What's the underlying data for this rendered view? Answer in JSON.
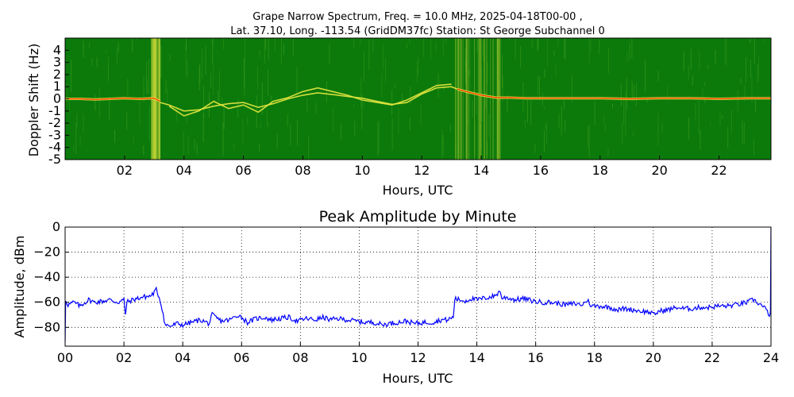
{
  "header": {
    "title_line1": "Grape Narrow Spectrum, Freq. = 10.0 MHz, 2025-04-18T00-00 ,",
    "title_line2": "Lat.  37.10, Long. -113.54 (GridDM37fc) Station: St George Subchannel 0"
  },
  "chart_data": [
    {
      "type": "heatmap",
      "title": "Grape Narrow Spectrum, Freq. = 10.0 MHz, 2025-04-18T00-00 , Lat.  37.10, Long. -113.54 (GridDM37fc) Station: St George Subchannel 0",
      "xlabel": "Hours, UTC",
      "ylabel": "Doppler Shift (Hz)",
      "xlim": [
        0,
        23.75
      ],
      "ylim": [
        -5,
        5
      ],
      "x_ticks": [
        "02",
        "04",
        "06",
        "08",
        "10",
        "12",
        "14",
        "16",
        "18",
        "20",
        "22"
      ],
      "x_tick_values": [
        2,
        4,
        6,
        8,
        10,
        12,
        14,
        16,
        18,
        20,
        22
      ],
      "y_ticks": [
        "4",
        "3",
        "2",
        "1",
        "0",
        "-1",
        "-2",
        "-3",
        "-4",
        "-5"
      ],
      "y_tick_values": [
        4,
        3,
        2,
        1,
        0,
        -1,
        -2,
        -3,
        -4,
        -5
      ],
      "colors": {
        "background": "#0b7a0b",
        "noise": "#3c9a1a",
        "signal": "#e8e840",
        "peak": "#ff2a00"
      },
      "traces": [
        {
          "x": [
            0,
            0.5,
            1,
            1.5,
            2,
            2.5,
            3,
            3.2
          ],
          "y": [
            0,
            0,
            -0.05,
            0,
            0.05,
            0,
            0.05,
            -0.2
          ]
        },
        {
          "x": [
            3.2,
            3.5,
            4,
            4.5,
            5,
            5.5,
            6,
            6.5,
            7,
            7.5,
            8,
            8.5,
            9,
            9.5,
            10,
            10.5,
            11,
            11.5,
            12,
            12.5,
            13,
            13.2
          ],
          "y": [
            -0.3,
            -0.5,
            -1.0,
            -0.9,
            -0.6,
            -0.4,
            -0.3,
            -0.7,
            -0.4,
            0,
            0.3,
            0.5,
            0.35,
            0.2,
            0.05,
            -0.2,
            -0.45,
            -0.3,
            0.4,
            0.9,
            1.0,
            0.8
          ]
        },
        {
          "x": [
            3.5,
            4,
            4.5,
            5,
            5.5,
            6,
            6.5,
            7,
            7.5,
            8,
            8.5,
            9,
            9.5,
            10,
            10.5,
            11,
            11.5,
            12,
            12.5,
            13
          ],
          "y": [
            -0.6,
            -1.4,
            -1.0,
            -0.2,
            -0.8,
            -0.5,
            -1.1,
            -0.2,
            0.1,
            0.6,
            0.9,
            0.6,
            0.3,
            -0.1,
            -0.3,
            -0.5,
            -0.1,
            0.5,
            1.1,
            1.2
          ]
        },
        {
          "x": [
            13.2,
            13.5,
            14,
            14.5,
            15,
            15.5,
            16,
            17,
            18,
            19,
            20,
            21,
            22,
            23,
            23.75
          ],
          "y": [
            0.8,
            0.6,
            0.3,
            0.1,
            0.1,
            0.05,
            0.05,
            0.05,
            0.05,
            0,
            0.05,
            0.05,
            0,
            0.05,
            0.05
          ]
        }
      ]
    },
    {
      "type": "line",
      "title": "Peak Amplitude by Minute",
      "xlabel": "Hours, UTC",
      "ylabel": "Amplitude, dBm",
      "xlim": [
        0,
        24
      ],
      "ylim": [
        -95,
        0
      ],
      "grid": true,
      "x_ticks": [
        "00",
        "02",
        "04",
        "06",
        "08",
        "10",
        "12",
        "14",
        "16",
        "18",
        "20",
        "22",
        "24"
      ],
      "x_tick_values": [
        0,
        2,
        4,
        6,
        8,
        10,
        12,
        14,
        16,
        18,
        20,
        22,
        24
      ],
      "y_ticks": [
        "0",
        "−20",
        "−40",
        "−60",
        "−80"
      ],
      "y_tick_values": [
        0,
        -20,
        -40,
        -60,
        -80
      ],
      "colors": {
        "line": "#0000ff"
      },
      "series": [
        {
          "x": [
            0,
            0.02,
            0.1,
            0.3,
            0.5,
            0.8,
            1.0,
            1.3,
            1.5,
            1.8,
            2.0,
            2.05,
            2.1,
            2.3,
            2.6,
            2.9,
            3.0,
            3.1,
            3.2,
            3.3,
            3.4,
            3.6,
            3.8,
            4.0,
            4.3,
            4.6,
            4.9,
            5.0,
            5.3,
            5.6,
            5.9,
            6.2,
            6.5,
            6.8,
            7.0,
            7.3,
            7.6,
            7.9,
            8.2,
            8.5,
            8.8,
            9.0,
            9.3,
            9.6,
            9.9,
            10.2,
            10.5,
            10.8,
            11.0,
            11.3,
            11.6,
            11.9,
            12.2,
            12.5,
            12.8,
            13.0,
            13.2,
            13.25,
            13.4,
            13.6,
            13.8,
            14.0,
            14.2,
            14.4,
            14.6,
            14.8,
            14.85,
            15.0,
            15.3,
            15.6,
            15.9,
            16.2,
            16.5,
            16.8,
            17.0,
            17.3,
            17.6,
            17.75,
            17.9,
            18.2,
            18.5,
            18.8,
            19.0,
            19.3,
            19.6,
            19.9,
            20.0,
            20.2,
            20.5,
            20.8,
            21.0,
            21.3,
            21.6,
            21.9,
            22.2,
            22.5,
            22.8,
            23.0,
            23.2,
            23.4,
            23.6,
            23.8,
            23.95,
            23.98,
            24.0
          ],
          "y": [
            -92,
            -58,
            -62,
            -60,
            -63,
            -58,
            -60,
            -59,
            -58,
            -60,
            -58,
            -70,
            -60,
            -58,
            -56,
            -55,
            -53,
            -50,
            -56,
            -65,
            -78,
            -79,
            -77,
            -78,
            -76,
            -74,
            -77,
            -70,
            -75,
            -74,
            -70,
            -76,
            -73,
            -72,
            -74,
            -73,
            -72,
            -75,
            -73,
            -74,
            -72,
            -74,
            -73,
            -74,
            -75,
            -76,
            -76,
            -78,
            -77,
            -76,
            -75,
            -77,
            -76,
            -76,
            -74,
            -74,
            -72,
            -57,
            -58,
            -59,
            -57,
            -58,
            -57,
            -56,
            -55,
            -51,
            -57,
            -56,
            -58,
            -57,
            -59,
            -60,
            -60,
            -61,
            -62,
            -61,
            -62,
            -58,
            -63,
            -63,
            -64,
            -66,
            -65,
            -66,
            -67,
            -68,
            -70,
            -67,
            -66,
            -64,
            -65,
            -65,
            -64,
            -64,
            -63,
            -63,
            -62,
            -61,
            -60,
            -58,
            -61,
            -65,
            -70,
            -68,
            0
          ]
        }
      ]
    }
  ]
}
